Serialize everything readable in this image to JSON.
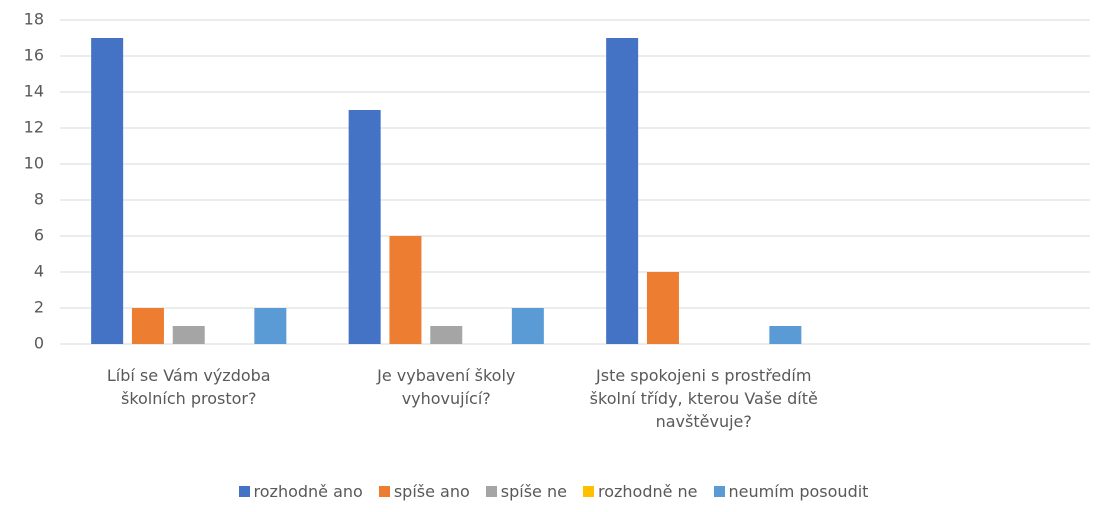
{
  "chart_data": {
    "type": "bar",
    "categories": [
      "Líbí se Vám výzdoba školních prostor?",
      "Je vybavení školy vyhovující?",
      "Jste spokojeni s prostředím školní třídy, kterou Vaše dítě navštěvuje?",
      null
    ],
    "series": [
      {
        "name": "rozhodně ano",
        "color": "#4472c4",
        "values": [
          17,
          13,
          17,
          null
        ]
      },
      {
        "name": "spíše ano",
        "color": "#ed7d31",
        "values": [
          2,
          6,
          4,
          null
        ]
      },
      {
        "name": "spíše ne",
        "color": "#a5a5a5",
        "values": [
          1,
          1,
          0,
          null
        ]
      },
      {
        "name": "rozhodně ne",
        "color": "#ffc000",
        "values": [
          0,
          0,
          0,
          null
        ]
      },
      {
        "name": "neumím posoudit",
        "color": "#5b9bd5",
        "values": [
          2,
          2,
          1,
          null
        ]
      }
    ],
    "ylim": [
      0,
      18
    ],
    "yticks": [
      0,
      2,
      4,
      6,
      8,
      10,
      12,
      14,
      16,
      18
    ],
    "grid": true,
    "legend": "bottom"
  }
}
